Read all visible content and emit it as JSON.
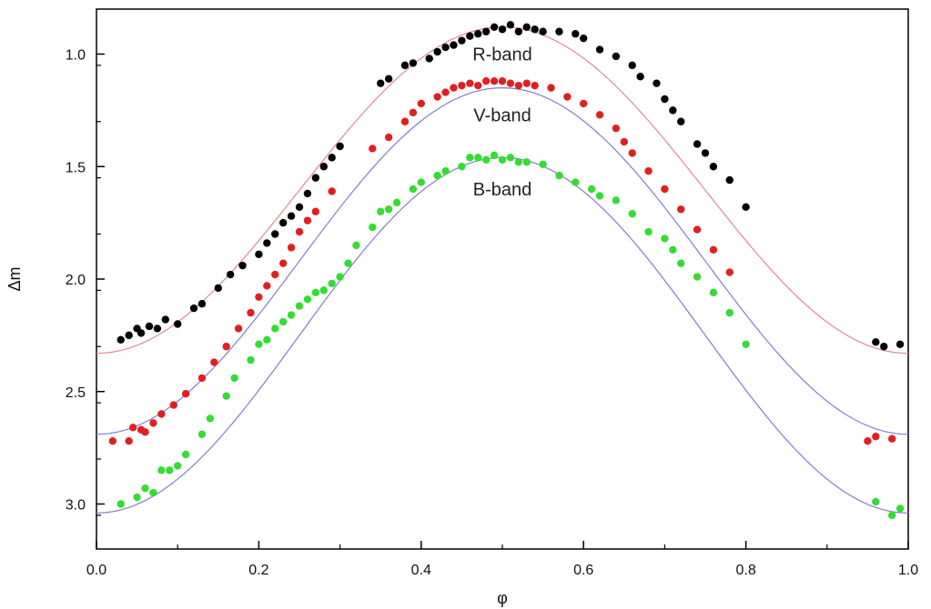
{
  "chart_data": {
    "type": "scatter",
    "title": "",
    "xlabel": "φ",
    "ylabel": "Δm",
    "xlim": [
      0.0,
      1.0
    ],
    "ylim": [
      0.8,
      3.2
    ],
    "y_inverted": true,
    "grid": false,
    "xticks": [
      0.0,
      0.2,
      0.4,
      0.6,
      0.8,
      1.0
    ],
    "xtick_labels": [
      "0.0",
      "0.2",
      "0.4",
      "0.6",
      "0.8",
      "1.0"
    ],
    "yticks": [
      1.0,
      1.5,
      2.0,
      2.5,
      3.0
    ],
    "ytick_labels": [
      "1.0",
      "1.5",
      "2.0",
      "2.5",
      "3.0"
    ],
    "series": [
      {
        "name": "R-band",
        "color": "#000000",
        "fit_color": "#e08a8a",
        "fit": {
          "mean": 1.605,
          "amplitude": 0.725
        },
        "x": [
          0.03,
          0.04,
          0.05,
          0.055,
          0.065,
          0.075,
          0.085,
          0.1,
          0.12,
          0.13,
          0.15,
          0.165,
          0.18,
          0.2,
          0.21,
          0.22,
          0.23,
          0.24,
          0.25,
          0.26,
          0.27,
          0.28,
          0.29,
          0.3,
          0.35,
          0.36,
          0.38,
          0.39,
          0.41,
          0.42,
          0.43,
          0.44,
          0.45,
          0.46,
          0.47,
          0.48,
          0.49,
          0.5,
          0.51,
          0.52,
          0.53,
          0.54,
          0.55,
          0.57,
          0.59,
          0.6,
          0.62,
          0.64,
          0.66,
          0.67,
          0.69,
          0.7,
          0.71,
          0.72,
          0.74,
          0.75,
          0.76,
          0.78,
          0.8,
          0.96,
          0.97,
          0.99
        ],
        "y": [
          2.27,
          2.25,
          2.22,
          2.24,
          2.21,
          2.22,
          2.18,
          2.2,
          2.13,
          2.11,
          2.04,
          1.98,
          1.94,
          1.89,
          1.84,
          1.8,
          1.75,
          1.72,
          1.68,
          1.62,
          1.55,
          1.5,
          1.46,
          1.41,
          1.13,
          1.11,
          1.05,
          1.04,
          1.02,
          0.99,
          0.97,
          0.96,
          0.94,
          0.92,
          0.91,
          0.9,
          0.88,
          0.89,
          0.87,
          0.9,
          0.88,
          0.89,
          0.9,
          0.9,
          0.91,
          0.93,
          0.98,
          1.01,
          1.05,
          1.1,
          1.13,
          1.2,
          1.25,
          1.3,
          1.4,
          1.44,
          1.5,
          1.56,
          1.68,
          2.28,
          2.3,
          2.29
        ]
      },
      {
        "name": "V-band",
        "color": "#e02020",
        "fit_color": "#7f7fd0",
        "fit": {
          "mean": 1.92,
          "amplitude": 0.77
        },
        "x": [
          0.02,
          0.04,
          0.045,
          0.055,
          0.06,
          0.07,
          0.08,
          0.095,
          0.11,
          0.13,
          0.145,
          0.16,
          0.175,
          0.19,
          0.2,
          0.21,
          0.22,
          0.23,
          0.24,
          0.25,
          0.26,
          0.27,
          0.29,
          0.34,
          0.36,
          0.38,
          0.39,
          0.4,
          0.42,
          0.43,
          0.44,
          0.45,
          0.46,
          0.47,
          0.48,
          0.49,
          0.5,
          0.51,
          0.52,
          0.53,
          0.54,
          0.56,
          0.58,
          0.6,
          0.62,
          0.64,
          0.65,
          0.66,
          0.68,
          0.7,
          0.72,
          0.74,
          0.76,
          0.78,
          0.95,
          0.96,
          0.98
        ],
        "y": [
          2.72,
          2.72,
          2.66,
          2.67,
          2.68,
          2.64,
          2.6,
          2.56,
          2.51,
          2.44,
          2.37,
          2.3,
          2.22,
          2.15,
          2.08,
          2.03,
          1.98,
          1.93,
          1.86,
          1.79,
          1.74,
          1.7,
          1.61,
          1.42,
          1.37,
          1.3,
          1.26,
          1.22,
          1.19,
          1.17,
          1.15,
          1.14,
          1.13,
          1.14,
          1.12,
          1.12,
          1.12,
          1.13,
          1.14,
          1.13,
          1.14,
          1.15,
          1.19,
          1.22,
          1.27,
          1.33,
          1.39,
          1.44,
          1.52,
          1.6,
          1.69,
          1.78,
          1.87,
          1.97,
          2.72,
          2.7,
          2.71
        ]
      },
      {
        "name": "B-band",
        "color": "#33dd33",
        "fit_color": "#7f7fd0",
        "fit": {
          "mean": 2.25,
          "amplitude": 0.79
        },
        "x": [
          0.03,
          0.05,
          0.06,
          0.07,
          0.08,
          0.09,
          0.1,
          0.11,
          0.13,
          0.14,
          0.16,
          0.17,
          0.19,
          0.2,
          0.21,
          0.22,
          0.23,
          0.24,
          0.25,
          0.26,
          0.27,
          0.28,
          0.29,
          0.3,
          0.31,
          0.32,
          0.34,
          0.35,
          0.36,
          0.37,
          0.39,
          0.4,
          0.42,
          0.43,
          0.45,
          0.46,
          0.47,
          0.48,
          0.49,
          0.5,
          0.51,
          0.52,
          0.53,
          0.55,
          0.57,
          0.59,
          0.61,
          0.62,
          0.64,
          0.66,
          0.68,
          0.7,
          0.71,
          0.72,
          0.74,
          0.76,
          0.78,
          0.8,
          0.96,
          0.98,
          0.99
        ],
        "y": [
          3.0,
          2.97,
          2.93,
          2.95,
          2.85,
          2.85,
          2.83,
          2.78,
          2.69,
          2.62,
          2.52,
          2.44,
          2.36,
          2.29,
          2.27,
          2.22,
          2.19,
          2.16,
          2.12,
          2.09,
          2.06,
          2.05,
          2.02,
          1.99,
          1.93,
          1.85,
          1.77,
          1.7,
          1.69,
          1.66,
          1.6,
          1.57,
          1.54,
          1.52,
          1.5,
          1.46,
          1.46,
          1.47,
          1.45,
          1.47,
          1.46,
          1.48,
          1.48,
          1.49,
          1.54,
          1.57,
          1.6,
          1.63,
          1.65,
          1.71,
          1.79,
          1.82,
          1.87,
          1.93,
          1.99,
          2.06,
          2.15,
          2.29,
          2.99,
          3.05,
          3.02
        ]
      }
    ],
    "annotations": [
      {
        "text": "R-band",
        "x": 0.5,
        "y": 1.0,
        "series": 0
      },
      {
        "text": "V-band",
        "x": 0.5,
        "y": 1.27,
        "series": 1
      },
      {
        "text": "B-band",
        "x": 0.5,
        "y": 1.6,
        "series": 2
      }
    ]
  }
}
